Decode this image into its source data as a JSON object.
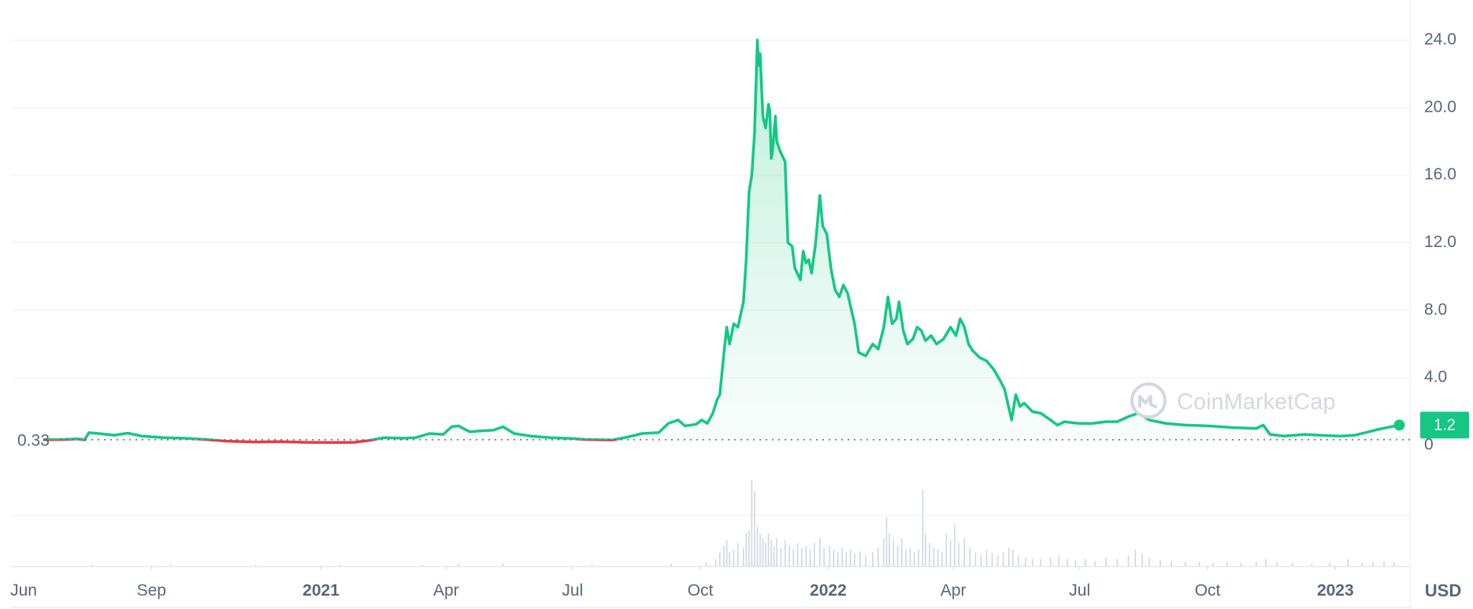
{
  "watermark": "CoinMarketCap",
  "currency_label": "USD",
  "start_price_label": "0.33",
  "current_price_label": "1.2",
  "colors": {
    "up": "#16c784",
    "down": "#ea3943",
    "grid": "#eff2f5",
    "axis_text": "#58667e",
    "volume": "#cfd6e4"
  },
  "chart_data": {
    "type": "area",
    "title": "",
    "xlabel": "",
    "ylabel": "",
    "ylim": [
      0,
      24
    ],
    "y_ticks": [
      "0",
      "4.0",
      "8.0",
      "12.0",
      "16.0",
      "20.0",
      "24.0"
    ],
    "x_ticks": [
      {
        "label": "Jun",
        "date": "2020-06-01",
        "year": false
      },
      {
        "label": "Sep",
        "date": "2020-09-01",
        "year": false
      },
      {
        "label": "2021",
        "date": "2021-01-01",
        "year": true
      },
      {
        "label": "Apr",
        "date": "2021-04-01",
        "year": false
      },
      {
        "label": "Jul",
        "date": "2021-07-01",
        "year": false
      },
      {
        "label": "Oct",
        "date": "2021-10-01",
        "year": false
      },
      {
        "label": "2022",
        "date": "2022-01-01",
        "year": true
      },
      {
        "label": "Apr",
        "date": "2022-04-01",
        "year": false
      },
      {
        "label": "Jul",
        "date": "2022-07-01",
        "year": false
      },
      {
        "label": "Oct",
        "date": "2022-10-01",
        "year": false
      },
      {
        "label": "2023",
        "date": "2023-01-01",
        "year": true
      }
    ],
    "baseline": 0.33,
    "current": 1.2,
    "series": [
      {
        "points": [
          [
            "2020-06-15",
            0.33
          ],
          [
            "2020-06-30",
            0.35
          ],
          [
            "2020-07-10",
            0.38
          ],
          [
            "2020-07-15",
            0.33
          ],
          [
            "2020-07-18",
            0.75
          ],
          [
            "2020-07-25",
            0.7
          ],
          [
            "2020-08-05",
            0.6
          ],
          [
            "2020-08-15",
            0.72
          ],
          [
            "2020-08-25",
            0.55
          ],
          [
            "2020-09-10",
            0.45
          ],
          [
            "2020-09-25",
            0.42
          ],
          [
            "2020-10-10",
            0.35
          ],
          [
            "2020-10-25",
            0.25
          ],
          [
            "2020-11-15",
            0.2
          ],
          [
            "2020-12-01",
            0.22
          ],
          [
            "2020-12-20",
            0.18
          ],
          [
            "2021-01-10",
            0.17
          ],
          [
            "2021-01-25",
            0.18
          ],
          [
            "2021-02-05",
            0.3
          ],
          [
            "2021-02-15",
            0.45
          ],
          [
            "2021-03-01",
            0.42
          ],
          [
            "2021-03-10",
            0.45
          ],
          [
            "2021-03-20",
            0.7
          ],
          [
            "2021-03-30",
            0.65
          ],
          [
            "2021-04-05",
            1.1
          ],
          [
            "2021-04-10",
            1.15
          ],
          [
            "2021-04-18",
            0.8
          ],
          [
            "2021-04-25",
            0.85
          ],
          [
            "2021-05-05",
            0.9
          ],
          [
            "2021-05-12",
            1.1
          ],
          [
            "2021-05-20",
            0.7
          ],
          [
            "2021-06-01",
            0.55
          ],
          [
            "2021-06-15",
            0.45
          ],
          [
            "2021-07-01",
            0.4
          ],
          [
            "2021-07-10",
            0.35
          ],
          [
            "2021-07-20",
            0.33
          ],
          [
            "2021-07-30",
            0.32
          ],
          [
            "2021-08-10",
            0.5
          ],
          [
            "2021-08-20",
            0.7
          ],
          [
            "2021-09-01",
            0.75
          ],
          [
            "2021-09-08",
            1.3
          ],
          [
            "2021-09-15",
            1.5
          ],
          [
            "2021-09-20",
            1.15
          ],
          [
            "2021-09-28",
            1.25
          ],
          [
            "2021-10-02",
            1.5
          ],
          [
            "2021-10-06",
            1.3
          ],
          [
            "2021-10-10",
            1.9
          ],
          [
            "2021-10-13",
            2.7
          ],
          [
            "2021-10-15",
            3.0
          ],
          [
            "2021-10-18",
            5.5
          ],
          [
            "2021-10-20",
            7.0
          ],
          [
            "2021-10-22",
            6.0
          ],
          [
            "2021-10-25",
            7.2
          ],
          [
            "2021-10-28",
            7.0
          ],
          [
            "2021-11-01",
            8.5
          ],
          [
            "2021-11-03",
            11.0
          ],
          [
            "2021-11-05",
            15.0
          ],
          [
            "2021-11-07",
            16.0
          ],
          [
            "2021-11-09",
            18.5
          ],
          [
            "2021-11-11",
            24.0
          ],
          [
            "2021-11-12",
            22.5
          ],
          [
            "2021-11-13",
            23.2
          ],
          [
            "2021-11-15",
            19.5
          ],
          [
            "2021-11-17",
            18.8
          ],
          [
            "2021-11-19",
            20.2
          ],
          [
            "2021-11-20",
            19.8
          ],
          [
            "2021-11-21",
            17.0
          ],
          [
            "2021-11-22",
            17.5
          ],
          [
            "2021-11-24",
            19.5
          ],
          [
            "2021-11-25",
            18.0
          ],
          [
            "2021-11-27",
            17.5
          ],
          [
            "2021-12-01",
            16.8
          ],
          [
            "2021-12-03",
            12.0
          ],
          [
            "2021-12-06",
            11.8
          ],
          [
            "2021-12-08",
            10.5
          ],
          [
            "2021-12-12",
            9.8
          ],
          [
            "2021-12-14",
            11.5
          ],
          [
            "2021-12-16",
            10.8
          ],
          [
            "2021-12-18",
            11.0
          ],
          [
            "2021-12-20",
            10.2
          ],
          [
            "2021-12-23",
            12.0
          ],
          [
            "2021-12-26",
            14.8
          ],
          [
            "2021-12-28",
            13.0
          ],
          [
            "2021-12-31",
            12.5
          ],
          [
            "2022-01-03",
            10.5
          ],
          [
            "2022-01-06",
            9.2
          ],
          [
            "2022-01-09",
            8.8
          ],
          [
            "2022-01-12",
            9.5
          ],
          [
            "2022-01-15",
            9.0
          ],
          [
            "2022-01-20",
            7.2
          ],
          [
            "2022-01-23",
            5.5
          ],
          [
            "2022-01-28",
            5.3
          ],
          [
            "2022-02-02",
            6.0
          ],
          [
            "2022-02-06",
            5.7
          ],
          [
            "2022-02-10",
            7.0
          ],
          [
            "2022-02-13",
            8.8
          ],
          [
            "2022-02-16",
            7.2
          ],
          [
            "2022-02-19",
            7.5
          ],
          [
            "2022-02-21",
            8.5
          ],
          [
            "2022-02-24",
            6.8
          ],
          [
            "2022-02-27",
            6.0
          ],
          [
            "2022-03-03",
            6.3
          ],
          [
            "2022-03-06",
            7.0
          ],
          [
            "2022-03-09",
            6.8
          ],
          [
            "2022-03-12",
            6.2
          ],
          [
            "2022-03-16",
            6.5
          ],
          [
            "2022-03-20",
            6.0
          ],
          [
            "2022-03-25",
            6.3
          ],
          [
            "2022-03-30",
            7.0
          ],
          [
            "2022-04-03",
            6.5
          ],
          [
            "2022-04-06",
            7.5
          ],
          [
            "2022-04-09",
            7.0
          ],
          [
            "2022-04-12",
            6.0
          ],
          [
            "2022-04-15",
            5.6
          ],
          [
            "2022-04-20",
            5.2
          ],
          [
            "2022-04-25",
            5.0
          ],
          [
            "2022-04-30",
            4.5
          ],
          [
            "2022-05-05",
            3.8
          ],
          [
            "2022-05-08",
            3.3
          ],
          [
            "2022-05-11",
            2.2
          ],
          [
            "2022-05-13",
            1.5
          ],
          [
            "2022-05-16",
            3.0
          ],
          [
            "2022-05-19",
            2.3
          ],
          [
            "2022-05-22",
            2.5
          ],
          [
            "2022-05-28",
            2.0
          ],
          [
            "2022-06-03",
            1.9
          ],
          [
            "2022-06-10",
            1.5
          ],
          [
            "2022-06-15",
            1.2
          ],
          [
            "2022-06-20",
            1.4
          ],
          [
            "2022-06-30",
            1.3
          ],
          [
            "2022-07-10",
            1.3
          ],
          [
            "2022-07-20",
            1.4
          ],
          [
            "2022-07-28",
            1.4
          ],
          [
            "2022-08-05",
            1.7
          ],
          [
            "2022-08-12",
            1.9
          ],
          [
            "2022-08-20",
            1.5
          ],
          [
            "2022-09-01",
            1.3
          ],
          [
            "2022-09-15",
            1.2
          ],
          [
            "2022-10-01",
            1.15
          ],
          [
            "2022-10-20",
            1.05
          ],
          [
            "2022-11-05",
            1.0
          ],
          [
            "2022-11-10",
            1.2
          ],
          [
            "2022-11-15",
            0.65
          ],
          [
            "2022-11-25",
            0.55
          ],
          [
            "2022-12-10",
            0.65
          ],
          [
            "2022-12-20",
            0.6
          ],
          [
            "2023-01-05",
            0.55
          ],
          [
            "2023-01-15",
            0.6
          ],
          [
            "2023-01-25",
            0.8
          ],
          [
            "2023-02-01",
            0.95
          ],
          [
            "2023-02-10",
            1.1
          ],
          [
            "2023-02-16",
            1.2
          ]
        ]
      }
    ],
    "volume": [
      {
        "date": "2020-07-20",
        "value": 2
      },
      {
        "date": "2020-09-15",
        "value": 2
      },
      {
        "date": "2020-11-15",
        "value": 2
      },
      {
        "date": "2021-01-15",
        "value": 2
      },
      {
        "date": "2021-03-15",
        "value": 2
      },
      {
        "date": "2021-04-10",
        "value": 3
      },
      {
        "date": "2021-05-12",
        "value": 3
      },
      {
        "date": "2021-07-15",
        "value": 2
      },
      {
        "date": "2021-09-10",
        "value": 3
      },
      {
        "date": "2021-10-05",
        "value": 4
      },
      {
        "date": "2021-10-12",
        "value": 8
      },
      {
        "date": "2021-10-15",
        "value": 15
      },
      {
        "date": "2021-10-18",
        "value": 22
      },
      {
        "date": "2021-10-20",
        "value": 28
      },
      {
        "date": "2021-10-22",
        "value": 15
      },
      {
        "date": "2021-10-25",
        "value": 18
      },
      {
        "date": "2021-10-28",
        "value": 25
      },
      {
        "date": "2021-11-01",
        "value": 20
      },
      {
        "date": "2021-11-03",
        "value": 35
      },
      {
        "date": "2021-11-05",
        "value": 38
      },
      {
        "date": "2021-11-07",
        "value": 92
      },
      {
        "date": "2021-11-09",
        "value": 80
      },
      {
        "date": "2021-11-11",
        "value": 42
      },
      {
        "date": "2021-11-13",
        "value": 35
      },
      {
        "date": "2021-11-15",
        "value": 30
      },
      {
        "date": "2021-11-17",
        "value": 25
      },
      {
        "date": "2021-11-19",
        "value": 35
      },
      {
        "date": "2021-11-21",
        "value": 28
      },
      {
        "date": "2021-11-23",
        "value": 22
      },
      {
        "date": "2021-11-25",
        "value": 30
      },
      {
        "date": "2021-11-28",
        "value": 20
      },
      {
        "date": "2021-12-01",
        "value": 28
      },
      {
        "date": "2021-12-04",
        "value": 22
      },
      {
        "date": "2021-12-07",
        "value": 18
      },
      {
        "date": "2021-12-10",
        "value": 25
      },
      {
        "date": "2021-12-13",
        "value": 20
      },
      {
        "date": "2021-12-16",
        "value": 22
      },
      {
        "date": "2021-12-19",
        "value": 18
      },
      {
        "date": "2021-12-22",
        "value": 25
      },
      {
        "date": "2021-12-26",
        "value": 30
      },
      {
        "date": "2021-12-29",
        "value": 20
      },
      {
        "date": "2022-01-02",
        "value": 22
      },
      {
        "date": "2022-01-05",
        "value": 18
      },
      {
        "date": "2022-01-08",
        "value": 16
      },
      {
        "date": "2022-01-11",
        "value": 20
      },
      {
        "date": "2022-01-14",
        "value": 15
      },
      {
        "date": "2022-01-17",
        "value": 18
      },
      {
        "date": "2022-01-20",
        "value": 14
      },
      {
        "date": "2022-01-24",
        "value": 16
      },
      {
        "date": "2022-01-28",
        "value": 12
      },
      {
        "date": "2022-02-02",
        "value": 15
      },
      {
        "date": "2022-02-06",
        "value": 20
      },
      {
        "date": "2022-02-10",
        "value": 30
      },
      {
        "date": "2022-02-12",
        "value": 52
      },
      {
        "date": "2022-02-14",
        "value": 35
      },
      {
        "date": "2022-02-17",
        "value": 28
      },
      {
        "date": "2022-02-20",
        "value": 22
      },
      {
        "date": "2022-02-23",
        "value": 30
      },
      {
        "date": "2022-02-26",
        "value": 18
      },
      {
        "date": "2022-03-01",
        "value": 20
      },
      {
        "date": "2022-03-04",
        "value": 15
      },
      {
        "date": "2022-03-07",
        "value": 18
      },
      {
        "date": "2022-03-10",
        "value": 82
      },
      {
        "date": "2022-03-12",
        "value": 35
      },
      {
        "date": "2022-03-15",
        "value": 25
      },
      {
        "date": "2022-03-18",
        "value": 20
      },
      {
        "date": "2022-03-21",
        "value": 18
      },
      {
        "date": "2022-03-24",
        "value": 15
      },
      {
        "date": "2022-03-27",
        "value": 35
      },
      {
        "date": "2022-03-30",
        "value": 28
      },
      {
        "date": "2022-04-02",
        "value": 45
      },
      {
        "date": "2022-04-05",
        "value": 25
      },
      {
        "date": "2022-04-09",
        "value": 30
      },
      {
        "date": "2022-04-13",
        "value": 20
      },
      {
        "date": "2022-04-17",
        "value": 15
      },
      {
        "date": "2022-04-21",
        "value": 12
      },
      {
        "date": "2022-04-25",
        "value": 18
      },
      {
        "date": "2022-04-29",
        "value": 14
      },
      {
        "date": "2022-05-03",
        "value": 12
      },
      {
        "date": "2022-05-07",
        "value": 15
      },
      {
        "date": "2022-05-11",
        "value": 20
      },
      {
        "date": "2022-05-14",
        "value": 18
      },
      {
        "date": "2022-05-18",
        "value": 12
      },
      {
        "date": "2022-05-23",
        "value": 10
      },
      {
        "date": "2022-05-28",
        "value": 8
      },
      {
        "date": "2022-06-03",
        "value": 8
      },
      {
        "date": "2022-06-10",
        "value": 10
      },
      {
        "date": "2022-06-16",
        "value": 12
      },
      {
        "date": "2022-06-22",
        "value": 8
      },
      {
        "date": "2022-06-28",
        "value": 7
      },
      {
        "date": "2022-07-05",
        "value": 8
      },
      {
        "date": "2022-07-12",
        "value": 6
      },
      {
        "date": "2022-07-20",
        "value": 9
      },
      {
        "date": "2022-07-28",
        "value": 8
      },
      {
        "date": "2022-08-05",
        "value": 12
      },
      {
        "date": "2022-08-10",
        "value": 18
      },
      {
        "date": "2022-08-15",
        "value": 14
      },
      {
        "date": "2022-08-20",
        "value": 10
      },
      {
        "date": "2022-08-28",
        "value": 7
      },
      {
        "date": "2022-09-05",
        "value": 6
      },
      {
        "date": "2022-09-15",
        "value": 5
      },
      {
        "date": "2022-09-25",
        "value": 5
      },
      {
        "date": "2022-10-05",
        "value": 4
      },
      {
        "date": "2022-10-15",
        "value": 5
      },
      {
        "date": "2022-10-25",
        "value": 4
      },
      {
        "date": "2022-11-05",
        "value": 5
      },
      {
        "date": "2022-11-12",
        "value": 8
      },
      {
        "date": "2022-11-20",
        "value": 5
      },
      {
        "date": "2022-12-01",
        "value": 4
      },
      {
        "date": "2022-12-15",
        "value": 3
      },
      {
        "date": "2022-12-28",
        "value": 4
      },
      {
        "date": "2023-01-10",
        "value": 8
      },
      {
        "date": "2023-01-20",
        "value": 4
      },
      {
        "date": "2023-01-28",
        "value": 5
      },
      {
        "date": "2023-02-05",
        "value": 6
      },
      {
        "date": "2023-02-12",
        "value": 5
      }
    ]
  }
}
